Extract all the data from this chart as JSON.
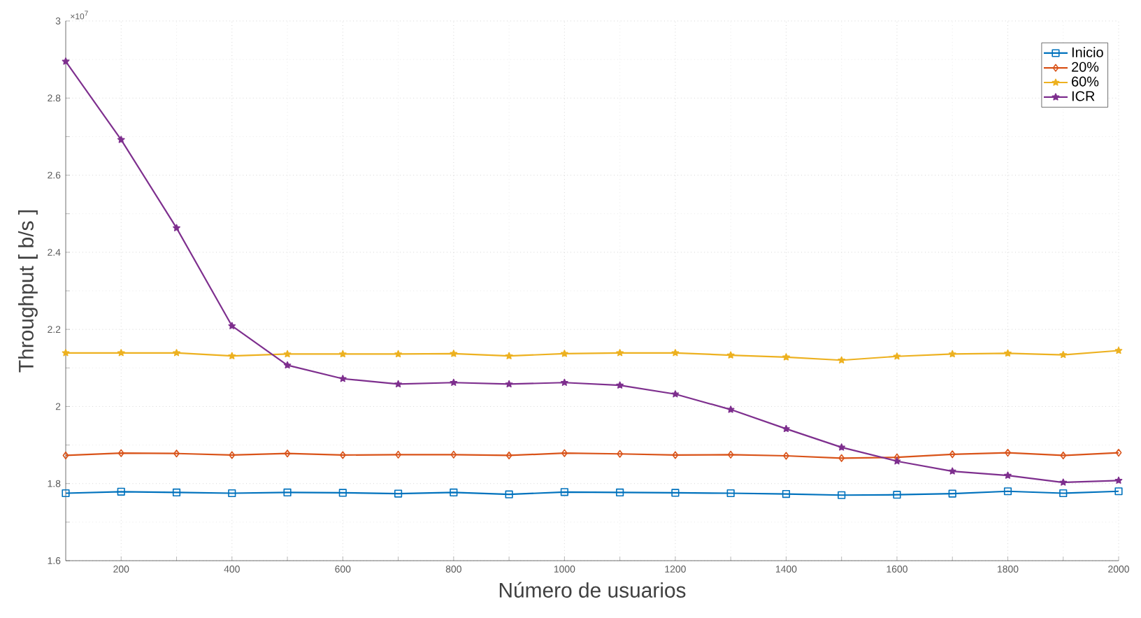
{
  "chart_data": {
    "type": "line",
    "xlabel": "Número de usuarios",
    "ylabel": "Throughput [ b/s ]",
    "annotations": [
      "×10$^{7}$"
    ],
    "x": [
      100,
      200,
      300,
      400,
      500,
      600,
      700,
      800,
      900,
      1000,
      1100,
      1200,
      1300,
      1400,
      1500,
      1600,
      1700,
      1800,
      1900,
      2000
    ],
    "xlim": [
      100,
      2000
    ],
    "xticks": [
      200,
      400,
      600,
      800,
      1000,
      1200,
      1400,
      1600,
      1800,
      2000
    ],
    "ylim": [
      1.6,
      3
    ],
    "yticks": [
      1.6,
      1.8,
      2,
      2.2,
      2.4,
      2.6,
      2.8,
      3
    ],
    "grid": true,
    "legend": "top right",
    "line_style": "solid",
    "series": [
      {
        "name": "Inicio",
        "color": "#0072bd",
        "marker": "square",
        "values": [
          1.775,
          1.779,
          1.777,
          1.775,
          1.777,
          1.776,
          1.774,
          1.777,
          1.772,
          1.778,
          1.777,
          1.776,
          1.775,
          1.773,
          1.77,
          1.771,
          1.774,
          1.78,
          1.775,
          1.78
        ]
      },
      {
        "name": "20%",
        "color": "#d95319",
        "marker": "diamond",
        "values": [
          1.873,
          1.879,
          1.878,
          1.874,
          1.878,
          1.874,
          1.875,
          1.875,
          1.873,
          1.879,
          1.877,
          1.874,
          1.875,
          1.872,
          1.866,
          1.868,
          1.876,
          1.88,
          1.873,
          1.88
        ]
      },
      {
        "name": "60%",
        "color": "#edb120",
        "marker": "star",
        "values": [
          2.139,
          2.139,
          2.139,
          2.131,
          2.136,
          2.136,
          2.136,
          2.137,
          2.131,
          2.137,
          2.139,
          2.139,
          2.133,
          2.128,
          2.12,
          2.13,
          2.136,
          2.138,
          2.134,
          2.145
        ]
      },
      {
        "name": "ICR",
        "color": "#7e2f8e",
        "marker": "star",
        "values": [
          2.895,
          2.692,
          2.463,
          2.209,
          2.107,
          2.072,
          2.058,
          2.062,
          2.058,
          2.062,
          2.055,
          2.032,
          1.992,
          1.942,
          1.894,
          1.858,
          1.832,
          1.821,
          1.803,
          1.808
        ]
      }
    ]
  }
}
